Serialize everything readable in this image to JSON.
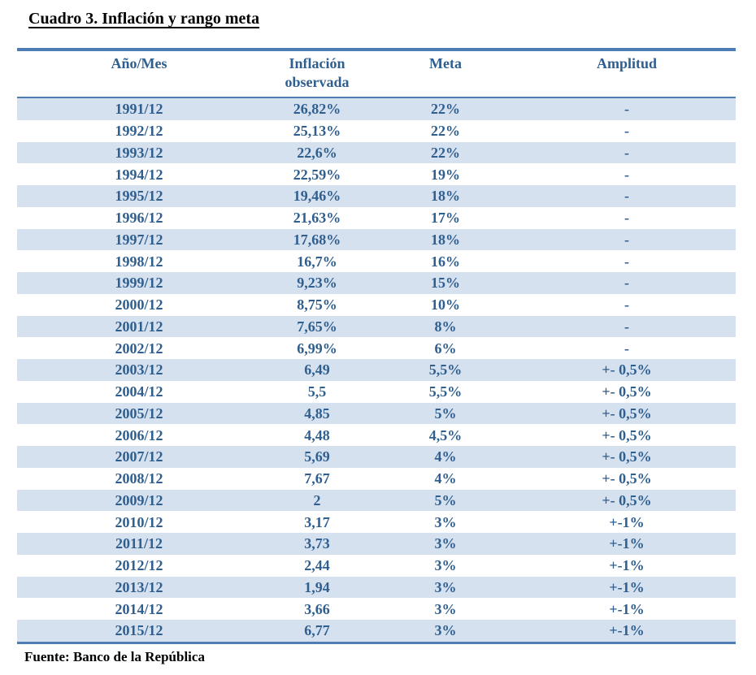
{
  "page": {
    "title": "Cuadro 3. Inflación y rango meta",
    "source": "Fuente: Banco de la República"
  },
  "table": {
    "columns": [
      {
        "key": "anio-mes",
        "label": "Año/Mes"
      },
      {
        "key": "inflacion-observada",
        "label": "Inflación observada"
      },
      {
        "key": "meta",
        "label": "Meta"
      },
      {
        "key": "amplitud",
        "label": "Amplitud"
      }
    ],
    "rows": [
      [
        "1991/12",
        "26,82%",
        "22%",
        "-"
      ],
      [
        "1992/12",
        "25,13%",
        "22%",
        "-"
      ],
      [
        "1993/12",
        "22,6%",
        "22%",
        "-"
      ],
      [
        "1994/12",
        "22,59%",
        "19%",
        "-"
      ],
      [
        "1995/12",
        "19,46%",
        "18%",
        "-"
      ],
      [
        "1996/12",
        "21,63%",
        "17%",
        "-"
      ],
      [
        "1997/12",
        "17,68%",
        "18%",
        "-"
      ],
      [
        "1998/12",
        "16,7%",
        "16%",
        "-"
      ],
      [
        "1999/12",
        "9,23%",
        "15%",
        "-"
      ],
      [
        "2000/12",
        "8,75%",
        "10%",
        "-"
      ],
      [
        "2001/12",
        "7,65%",
        "8%",
        "-"
      ],
      [
        "2002/12",
        "6,99%",
        "6%",
        "-"
      ],
      [
        "2003/12",
        "6,49",
        "5,5%",
        "+- 0,5%"
      ],
      [
        "2004/12",
        "5,5",
        "5,5%",
        "+- 0,5%"
      ],
      [
        "2005/12",
        "4,85",
        "5%",
        "+- 0,5%"
      ],
      [
        "2006/12",
        "4,48",
        "4,5%",
        "+- 0,5%"
      ],
      [
        "2007/12",
        "5,69",
        "4%",
        "+- 0,5%"
      ],
      [
        "2008/12",
        "7,67",
        "4%",
        "+- 0,5%"
      ],
      [
        "2009/12",
        "2",
        "5%",
        "+- 0,5%"
      ],
      [
        "2010/12",
        "3,17",
        "3%",
        "+-1%"
      ],
      [
        "2011/12",
        "3,73",
        "3%",
        "+-1%"
      ],
      [
        "2012/12",
        "2,44",
        "3%",
        "+-1%"
      ],
      [
        "2013/12",
        "1,94",
        "3%",
        "+-1%"
      ],
      [
        "2014/12",
        "3,66",
        "3%",
        "+-1%"
      ],
      [
        "2015/12",
        "6,77",
        "3%",
        "+-1%"
      ]
    ]
  },
  "colors": {
    "border_blue": "#4C7DB3",
    "stripe_blue": "#D6E1F0",
    "text_blue": "#2F5F8F",
    "title_black": "#000000"
  }
}
